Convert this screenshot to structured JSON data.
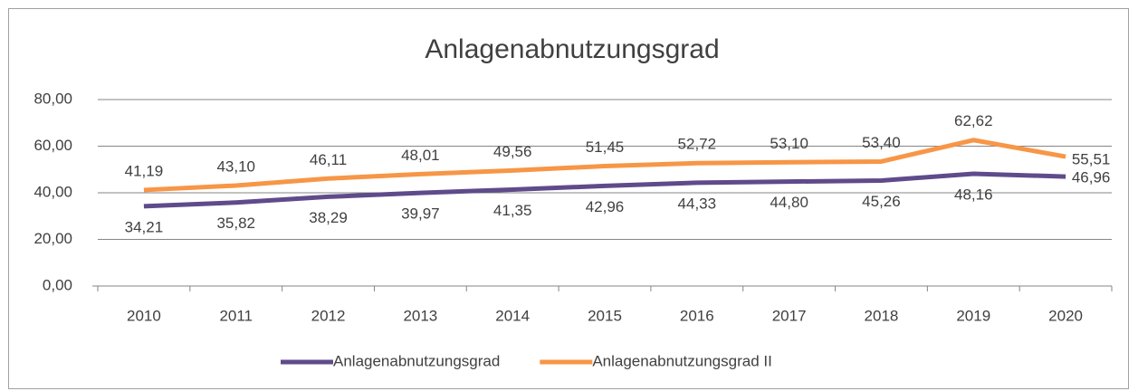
{
  "chart_data": {
    "type": "line",
    "title": "Anlagenabnutzungsgrad",
    "categories": [
      "2010",
      "2011",
      "2012",
      "2013",
      "2014",
      "2015",
      "2016",
      "2017",
      "2018",
      "2019",
      "2020"
    ],
    "series": [
      {
        "name": "Anlagenabnutzungsgrad",
        "color": "#5f4b8b",
        "values": [
          34.21,
          35.82,
          38.29,
          39.97,
          41.35,
          42.96,
          44.33,
          44.8,
          45.26,
          48.16,
          46.96
        ],
        "value_labels": [
          "34,21",
          "35,82",
          "38,29",
          "39,97",
          "41,35",
          "42,96",
          "44,33",
          "44,80",
          "45,26",
          "48,16",
          "46,96"
        ]
      },
      {
        "name": "Anlagenabnutzungsgrad II",
        "color": "#f79646",
        "values": [
          41.19,
          43.1,
          46.11,
          48.01,
          49.56,
          51.45,
          52.72,
          53.1,
          53.4,
          62.62,
          55.51
        ],
        "value_labels": [
          "41,19",
          "43,10",
          "46,11",
          "48,01",
          "49,56",
          "51,45",
          "52,72",
          "53,10",
          "53,40",
          "62,62",
          "55,51"
        ]
      }
    ],
    "ylim": [
      0,
      80
    ],
    "yticks": [
      {
        "value": 0,
        "label": "0,00"
      },
      {
        "value": 20,
        "label": "20,00"
      },
      {
        "value": 40,
        "label": "40,00"
      },
      {
        "value": 60,
        "label": "60,00"
      },
      {
        "value": 80,
        "label": "80,00"
      }
    ],
    "grid": true,
    "legend": "bottom"
  }
}
